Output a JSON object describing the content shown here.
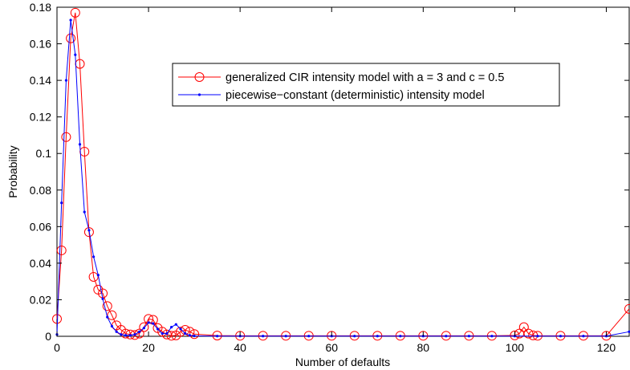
{
  "chart_data": {
    "type": "line",
    "xlabel": "Number of defaults",
    "ylabel": "Probability",
    "xlim": [
      0,
      125
    ],
    "ylim": [
      0,
      0.18
    ],
    "xticks": [
      0,
      20,
      40,
      60,
      80,
      100,
      120
    ],
    "yticks": [
      0,
      0.02,
      0.04,
      0.06,
      0.08,
      0.1,
      0.12,
      0.14,
      0.16,
      0.18
    ],
    "ytick_labels": [
      "0",
      "0.02",
      "0.04",
      "0.06",
      "0.08",
      "0.1",
      "0.12",
      "0.14",
      "0.16",
      "0.18"
    ],
    "grid": false,
    "legend_position": "upper-center",
    "series": [
      {
        "name": "generalized CIR intensity model with a = 3 and c = 0.5",
        "color": "#ff0000",
        "marker": "circle",
        "x": [
          0,
          1,
          2,
          3,
          4,
          5,
          6,
          7,
          8,
          9,
          10,
          11,
          12,
          13,
          14,
          15,
          16,
          17,
          18,
          19,
          20,
          21,
          22,
          23,
          24,
          25,
          26,
          27,
          28,
          29,
          30,
          35,
          40,
          45,
          50,
          55,
          60,
          65,
          70,
          75,
          80,
          85,
          90,
          95,
          100,
          101,
          102,
          103,
          104,
          105,
          110,
          115,
          120,
          125
        ],
        "y": [
          0.0095,
          0.047,
          0.109,
          0.163,
          0.177,
          0.149,
          0.101,
          0.057,
          0.0325,
          0.0255,
          0.0235,
          0.0165,
          0.0115,
          0.006,
          0.0035,
          0.0015,
          0.001,
          0.0007,
          0.0015,
          0.005,
          0.0095,
          0.009,
          0.0045,
          0.0025,
          0.001,
          0.0003,
          0.0005,
          0.0025,
          0.0035,
          0.0025,
          0.0012,
          0.0004,
          0.0003,
          0.0003,
          0.0003,
          0.0003,
          0.0003,
          0.0003,
          0.0003,
          0.0003,
          0.0003,
          0.0003,
          0.0003,
          0.0003,
          0.0005,
          0.0015,
          0.005,
          0.0015,
          0.0005,
          0.0003,
          0.0003,
          0.0003,
          0.0003,
          0.015
        ]
      },
      {
        "name": "piecewise−constant (deterministic) intensity model",
        "color": "#0000ff",
        "marker": "dot",
        "x": [
          0,
          1,
          2,
          3,
          4,
          5,
          6,
          7,
          8,
          9,
          10,
          11,
          12,
          13,
          14,
          15,
          16,
          17,
          18,
          19,
          20,
          21,
          22,
          23,
          24,
          25,
          26,
          27,
          28,
          29,
          30,
          35,
          40,
          45,
          50,
          55,
          60,
          65,
          70,
          75,
          80,
          85,
          90,
          95,
          100,
          105,
          110,
          115,
          120,
          125
        ],
        "y": [
          0.001,
          0.073,
          0.14,
          0.173,
          0.154,
          0.105,
          0.068,
          0.058,
          0.0435,
          0.0335,
          0.0205,
          0.0105,
          0.0055,
          0.0025,
          0.001,
          0.0005,
          0.0005,
          0.001,
          0.0025,
          0.0045,
          0.0075,
          0.007,
          0.004,
          0.0015,
          0.0015,
          0.005,
          0.0065,
          0.004,
          0.0015,
          0.0005,
          0.0002,
          0.0001,
          0.0001,
          0.0001,
          0.0001,
          0.0001,
          0.0001,
          0.0001,
          0.0001,
          0.0001,
          0.0001,
          0.0001,
          0.0001,
          0.0001,
          0.0001,
          0.0001,
          0.0001,
          0.0001,
          0.0001,
          0.0025
        ]
      }
    ]
  }
}
